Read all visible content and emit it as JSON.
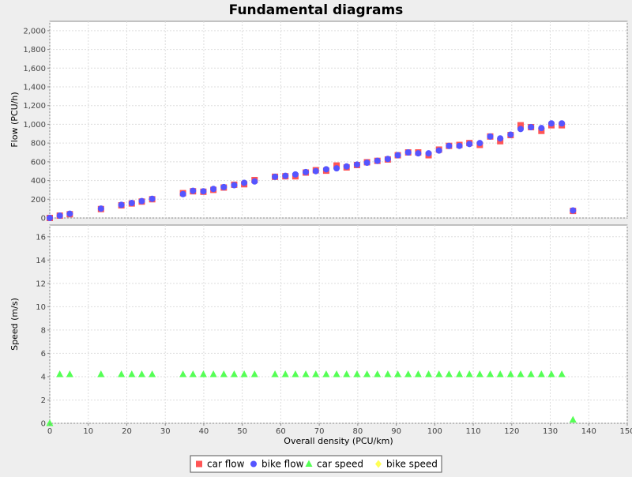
{
  "chart_data": {
    "type": "scatter",
    "title": "Fundamental diagrams",
    "x": [
      0,
      2.6,
      5.2,
      13.3,
      18.6,
      21.3,
      23.9,
      26.6,
      34.6,
      37.2,
      39.9,
      42.5,
      45.2,
      47.9,
      50.5,
      53.2,
      58.5,
      61.2,
      63.8,
      66.5,
      69.1,
      71.8,
      74.5,
      77.1,
      79.8,
      82.4,
      85.1,
      87.8,
      90.4,
      93.1,
      95.7,
      98.4,
      101.1,
      103.7,
      106.4,
      109.0,
      111.7,
      114.4,
      117.0,
      119.7,
      122.3,
      125.0,
      127.7,
      130.3,
      133.0,
      135.9
    ],
    "xlabel": "Overall density (PCU/km)",
    "xlim": [
      0,
      150
    ],
    "xticks": [
      "0",
      "10",
      "20",
      "30",
      "40",
      "50",
      "60",
      "70",
      "80",
      "90",
      "100",
      "110",
      "120",
      "130",
      "140",
      "150"
    ],
    "grid": true,
    "legend_position": "bottom",
    "subplots": [
      {
        "ylabel": "Flow (PCU/h)",
        "ylim": [
          0,
          2100
        ],
        "yticks": [
          "0",
          "200",
          "400",
          "600",
          "800",
          "1,000",
          "1,200",
          "1,400",
          "1,600",
          "1,800",
          "2,000"
        ],
        "series": [
          {
            "name": "car flow",
            "marker": "square",
            "color": "#ff5555",
            "values": [
              0,
              25,
              40,
              95,
              135,
              155,
              175,
              200,
              265,
              285,
              280,
              300,
              325,
              355,
              360,
              405,
              440,
              445,
              445,
              485,
              510,
              505,
              560,
              540,
              565,
              595,
              610,
              625,
              670,
              700,
              700,
              670,
              730,
              770,
              780,
              800,
              780,
              870,
              820,
              885,
              990,
              970,
              930,
              990,
              990,
              75
            ]
          },
          {
            "name": "bike flow",
            "marker": "circle",
            "color": "#5555ff",
            "values": [
              0,
              25,
              45,
              100,
              140,
              160,
              180,
              205,
              255,
              290,
              285,
              310,
              330,
              350,
              375,
              390,
              440,
              450,
              465,
              490,
              500,
              520,
              530,
              550,
              570,
              590,
              610,
              630,
              670,
              700,
              690,
              690,
              720,
              770,
              770,
              790,
              800,
              870,
              850,
              890,
              950,
              970,
              960,
              1010,
              1010,
              80
            ]
          }
        ]
      },
      {
        "ylabel": "Speed (m/s)",
        "ylim": [
          0,
          17
        ],
        "yticks": [
          "0",
          "2",
          "4",
          "6",
          "8",
          "10",
          "12",
          "14",
          "16"
        ],
        "series": [
          {
            "name": "car speed",
            "marker": "triangle",
            "color": "#55ff55",
            "values": [
              0,
              4.2,
              4.2,
              4.2,
              4.2,
              4.2,
              4.2,
              4.2,
              4.2,
              4.2,
              4.2,
              4.2,
              4.2,
              4.2,
              4.2,
              4.2,
              4.2,
              4.2,
              4.2,
              4.2,
              4.2,
              4.2,
              4.2,
              4.2,
              4.2,
              4.2,
              4.2,
              4.2,
              4.2,
              4.2,
              4.2,
              4.2,
              4.2,
              4.2,
              4.2,
              4.2,
              4.2,
              4.2,
              4.2,
              4.2,
              4.2,
              4.2,
              4.2,
              4.2,
              4.2,
              0.3
            ]
          },
          {
            "name": "bike speed",
            "marker": "diamond",
            "color": "#ffff55",
            "values": []
          }
        ]
      }
    ]
  }
}
